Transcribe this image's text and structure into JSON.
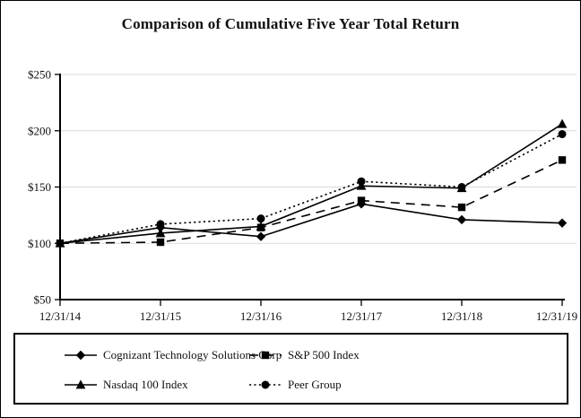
{
  "chart_data": {
    "type": "line",
    "title": "Comparison of Cumulative Five Year Total Return",
    "categories": [
      "12/31/14",
      "12/31/15",
      "12/31/16",
      "12/31/17",
      "12/31/18",
      "12/31/19"
    ],
    "y_axis": {
      "tick_labels": [
        "$50",
        "$100",
        "$150",
        "$200",
        "$250"
      ],
      "tick_values": [
        50,
        100,
        150,
        200,
        250
      ],
      "min": 50,
      "max": 250
    },
    "grid": "horizontal",
    "gridline_color": "#d9d9d9",
    "axis_color": "#000000",
    "legend_position": "bottom-box",
    "series": [
      {
        "name": "Cognizant Technology Solutions Corp",
        "marker": "diamond",
        "line": "solid",
        "color": "#000000",
        "values": [
          100,
          114,
          106,
          135,
          121,
          118
        ]
      },
      {
        "name": "S&P 500 Index",
        "marker": "square",
        "line": "dashed",
        "color": "#000000",
        "values": [
          100,
          101,
          114,
          138,
          132,
          174
        ]
      },
      {
        "name": "Nasdaq 100 Index",
        "marker": "triangle",
        "line": "solid",
        "color": "#000000",
        "values": [
          100,
          109,
          115,
          151,
          149,
          206
        ]
      },
      {
        "name": "Peer Group",
        "marker": "circle",
        "line": "dotted",
        "color": "#000000",
        "values": [
          100,
          117,
          122,
          155,
          150,
          197
        ]
      }
    ]
  }
}
